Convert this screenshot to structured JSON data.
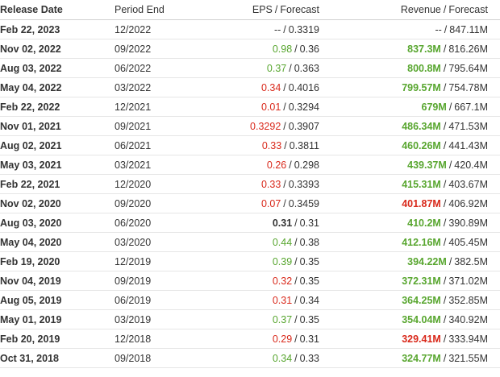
{
  "header": {
    "release_date": "Release Date",
    "period_end": "Period End",
    "eps": "EPS",
    "rev": "Revenue",
    "sep": "/",
    "forecast": "Forecast"
  },
  "colors": {
    "beat": "#58a62f",
    "miss": "#d9291b",
    "neutral": "#333333"
  },
  "rows": [
    {
      "release": "Feb 22, 2023",
      "period": "12/2022",
      "eps": "--",
      "eps_status": "neutral",
      "eps_fc": "0.3319",
      "rev": "--",
      "rev_status": "neutral",
      "rev_fc": "847.11M"
    },
    {
      "release": "Nov 02, 2022",
      "period": "09/2022",
      "eps": "0.98",
      "eps_status": "pos",
      "eps_fc": "0.36",
      "rev": "837.3M",
      "rev_status": "pos",
      "rev_fc": "816.26M"
    },
    {
      "release": "Aug 03, 2022",
      "period": "06/2022",
      "eps": "0.37",
      "eps_status": "pos",
      "eps_fc": "0.363",
      "rev": "800.8M",
      "rev_status": "pos",
      "rev_fc": "795.64M"
    },
    {
      "release": "May 04, 2022",
      "period": "03/2022",
      "eps": "0.34",
      "eps_status": "neg",
      "eps_fc": "0.4016",
      "rev": "799.57M",
      "rev_status": "pos",
      "rev_fc": "754.78M"
    },
    {
      "release": "Feb 22, 2022",
      "period": "12/2021",
      "eps": "0.01",
      "eps_status": "neg",
      "eps_fc": "0.3294",
      "rev": "679M",
      "rev_status": "pos",
      "rev_fc": "667.1M"
    },
    {
      "release": "Nov 01, 2021",
      "period": "09/2021",
      "eps": "0.3292",
      "eps_status": "neg",
      "eps_fc": "0.3907",
      "rev": "486.34M",
      "rev_status": "pos",
      "rev_fc": "471.53M"
    },
    {
      "release": "Aug 02, 2021",
      "period": "06/2021",
      "eps": "0.33",
      "eps_status": "neg",
      "eps_fc": "0.3811",
      "rev": "460.26M",
      "rev_status": "pos",
      "rev_fc": "441.43M"
    },
    {
      "release": "May 03, 2021",
      "period": "03/2021",
      "eps": "0.26",
      "eps_status": "neg",
      "eps_fc": "0.298",
      "rev": "439.37M",
      "rev_status": "pos",
      "rev_fc": "420.4M"
    },
    {
      "release": "Feb 22, 2021",
      "period": "12/2020",
      "eps": "0.33",
      "eps_status": "neg",
      "eps_fc": "0.3393",
      "rev": "415.31M",
      "rev_status": "pos",
      "rev_fc": "403.67M"
    },
    {
      "release": "Nov 02, 2020",
      "period": "09/2020",
      "eps": "0.07",
      "eps_status": "neg",
      "eps_fc": "0.3459",
      "rev": "401.87M",
      "rev_status": "neg",
      "rev_fc": "406.92M"
    },
    {
      "release": "Aug 03, 2020",
      "period": "06/2020",
      "eps": "0.31",
      "eps_status": "neutral",
      "eps_fc": "0.31",
      "rev": "410.2M",
      "rev_status": "pos",
      "rev_fc": "390.89M"
    },
    {
      "release": "May 04, 2020",
      "period": "03/2020",
      "eps": "0.44",
      "eps_status": "pos",
      "eps_fc": "0.38",
      "rev": "412.16M",
      "rev_status": "pos",
      "rev_fc": "405.45M"
    },
    {
      "release": "Feb 19, 2020",
      "period": "12/2019",
      "eps": "0.39",
      "eps_status": "pos",
      "eps_fc": "0.35",
      "rev": "394.22M",
      "rev_status": "pos",
      "rev_fc": "382.5M"
    },
    {
      "release": "Nov 04, 2019",
      "period": "09/2019",
      "eps": "0.32",
      "eps_status": "neg",
      "eps_fc": "0.35",
      "rev": "372.31M",
      "rev_status": "pos",
      "rev_fc": "371.02M"
    },
    {
      "release": "Aug 05, 2019",
      "period": "06/2019",
      "eps": "0.31",
      "eps_status": "neg",
      "eps_fc": "0.34",
      "rev": "364.25M",
      "rev_status": "pos",
      "rev_fc": "352.85M"
    },
    {
      "release": "May 01, 2019",
      "period": "03/2019",
      "eps": "0.37",
      "eps_status": "pos",
      "eps_fc": "0.35",
      "rev": "354.04M",
      "rev_status": "pos",
      "rev_fc": "340.92M"
    },
    {
      "release": "Feb 20, 2019",
      "period": "12/2018",
      "eps": "0.29",
      "eps_status": "neg",
      "eps_fc": "0.31",
      "rev": "329.41M",
      "rev_status": "neg",
      "rev_fc": "333.94M"
    },
    {
      "release": "Oct 31, 2018",
      "period": "09/2018",
      "eps": "0.34",
      "eps_status": "pos",
      "eps_fc": "0.33",
      "rev": "324.77M",
      "rev_status": "pos",
      "rev_fc": "321.55M"
    }
  ]
}
